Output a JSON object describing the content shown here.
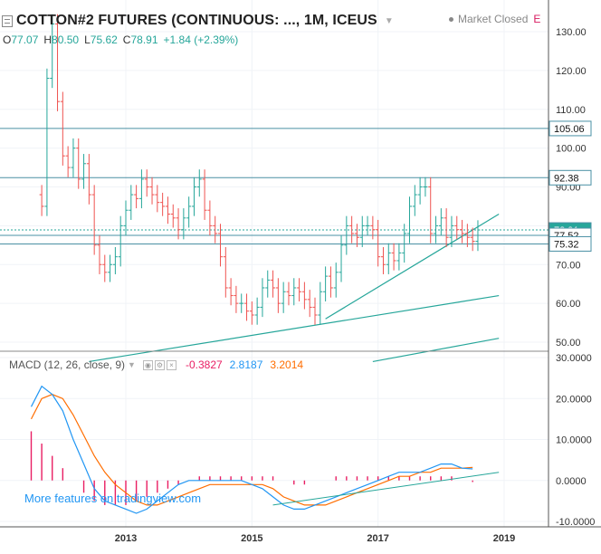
{
  "header": {
    "title": "COTTON#2 FUTURES (CONTINUOUS: ..., 1M, ICEUS",
    "market_status": "Market Closed",
    "market_flag": "E"
  },
  "ohlc": {
    "o_label": "O",
    "o": "77.07",
    "h_label": "H",
    "h": "80.50",
    "l_label": "L",
    "l": "75.62",
    "c_label": "C",
    "c": "78.91",
    "change": "+1.84 (+2.39%)"
  },
  "macd": {
    "label": "MACD (12, 26, close, 9)",
    "hist_value": "-0.3827",
    "macd_value": "2.8187",
    "signal_value": "3.2014"
  },
  "promo_text": "More features on tradingview.com",
  "colors": {
    "up": "#26a69a",
    "down": "#ef5350",
    "level_line": "#4a90a4",
    "macd_line": "#2196f3",
    "signal_line": "#ff6d00",
    "histogram": "#e91e63",
    "promo": "#2196f3",
    "flag": "#d81b60"
  },
  "chart_data": [
    {
      "type": "candlestick",
      "title": "COTTON#2 FUTURES (CONTINUOUS: ..., 1M, ICEUS",
      "y_ticks": [
        "130.00",
        "120.00",
        "110.00",
        "100.00",
        "90.00",
        "80.00",
        "70.00",
        "60.00",
        "50.00"
      ],
      "x_ticks": [
        "2013",
        "2015",
        "2017",
        "2019"
      ],
      "price_tags": [
        {
          "label": "105.06",
          "kind": "level"
        },
        {
          "label": "92.38",
          "kind": "level"
        },
        {
          "label": "78.91",
          "kind": "last"
        },
        {
          "label": "77.52",
          "kind": "level"
        },
        {
          "label": "75.32",
          "kind": "level"
        }
      ],
      "horizontal_levels": [
        105.06,
        92.38,
        77.52,
        75.32
      ],
      "last_close": 78.91,
      "closes": [
        85,
        118,
        132,
        112,
        98,
        95,
        100,
        92,
        96,
        88,
        75,
        70,
        68,
        70,
        72,
        80,
        84,
        88,
        87,
        92,
        90,
        88,
        86,
        85,
        83,
        82,
        79,
        82,
        85,
        90,
        92,
        84,
        80,
        78,
        72,
        64,
        62,
        60,
        60,
        58,
        57,
        59,
        64,
        66,
        64,
        60,
        63,
        62,
        64,
        63,
        61,
        59,
        57,
        63,
        67,
        64,
        68,
        75,
        80,
        78,
        77,
        80,
        80,
        79,
        72,
        70,
        73,
        71,
        73,
        78,
        85,
        88,
        90,
        90,
        78,
        80,
        82,
        77,
        80,
        79,
        78,
        77,
        76,
        78.91
      ],
      "trendlines": [
        {
          "from": [
            "2012-06",
            45
          ],
          "to": [
            "2018-12",
            62
          ]
        },
        {
          "from": [
            "2016-03",
            56
          ],
          "to": [
            "2018-12",
            83
          ]
        },
        {
          "from": [
            "2016-12",
            45
          ],
          "to": [
            "2018-12",
            51
          ]
        }
      ]
    },
    {
      "type": "line",
      "title": "MACD (12, 26, close, 9)",
      "y_ticks": [
        "30.0000",
        "20.0000",
        "10.0000",
        "0.0000",
        "-10.0000"
      ],
      "series": [
        {
          "name": "MACD",
          "values": [
            18,
            23,
            21,
            17,
            10,
            4,
            -2,
            -5,
            -6,
            -7,
            -8,
            -7,
            -5,
            -3,
            -1,
            0,
            0,
            0,
            0,
            0,
            0,
            -1,
            -2,
            -4,
            -6,
            -7,
            -7,
            -6,
            -5,
            -4,
            -3,
            -2,
            -1,
            0,
            1,
            2,
            2,
            2,
            3,
            4,
            4,
            3,
            2.8187
          ]
        },
        {
          "name": "Signal",
          "values": [
            15,
            20,
            21,
            20,
            16,
            11,
            6,
            2,
            -1,
            -3,
            -5,
            -6,
            -6,
            -5,
            -4,
            -3,
            -2,
            -1,
            -1,
            -1,
            -1,
            -1,
            -1,
            -2,
            -4,
            -5,
            -6,
            -6,
            -6,
            -5,
            -4,
            -3,
            -2,
            -1,
            0,
            1,
            1,
            2,
            2,
            3,
            3,
            3,
            3.2014
          ]
        },
        {
          "name": "Histogram",
          "values": [
            12,
            9,
            6,
            3,
            0,
            -3,
            -5,
            -6,
            -6,
            -6,
            -5,
            -4,
            -3,
            -2,
            -1,
            0,
            1,
            1,
            1,
            1,
            1,
            1,
            1,
            1,
            0,
            -1,
            -1,
            0,
            0,
            1,
            1,
            1,
            1,
            1,
            1,
            1,
            1,
            1,
            1,
            1,
            1,
            0,
            -0.3827
          ]
        }
      ]
    }
  ]
}
